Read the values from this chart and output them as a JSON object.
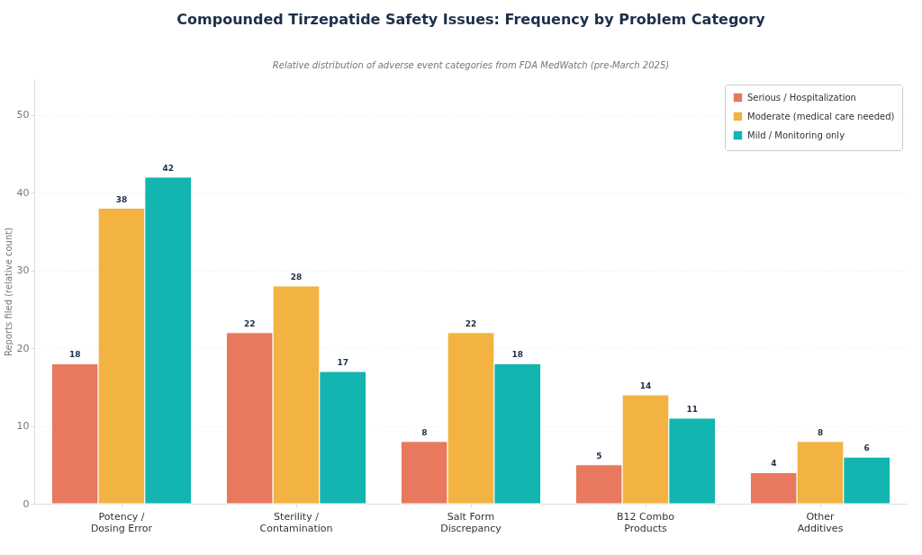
{
  "chart_data": {
    "type": "bar",
    "title": "Compounded Tirzepatide Safety Issues: Frequency by Problem Category",
    "subtitle": "Relative distribution of adverse event categories from FDA MedWatch (pre-March 2025)",
    "ylabel": "Reports filed (relative count)",
    "categories": [
      "Potency /\nDosing Error",
      "Sterility /\nContamination",
      "Salt Form\nDiscrepancy",
      "B12 Combo\nProducts",
      "Other\nAdditives"
    ],
    "series": [
      {
        "name": "Serious / Hospitalization",
        "color": "#e8795e",
        "values": [
          18,
          22,
          8,
          5,
          4
        ]
      },
      {
        "name": "Moderate (medical care needed)",
        "color": "#f2b342",
        "values": [
          38,
          28,
          22,
          14,
          8
        ]
      },
      {
        "name": "Mild / Monitoring only",
        "color": "#12b5b0",
        "values": [
          42,
          17,
          18,
          11,
          6
        ]
      }
    ],
    "ylim": [
      0,
      54.6
    ],
    "yticks": [
      0,
      10,
      20,
      30,
      40,
      50
    ],
    "grid": "y",
    "legend": "top right",
    "data_labels": true
  }
}
